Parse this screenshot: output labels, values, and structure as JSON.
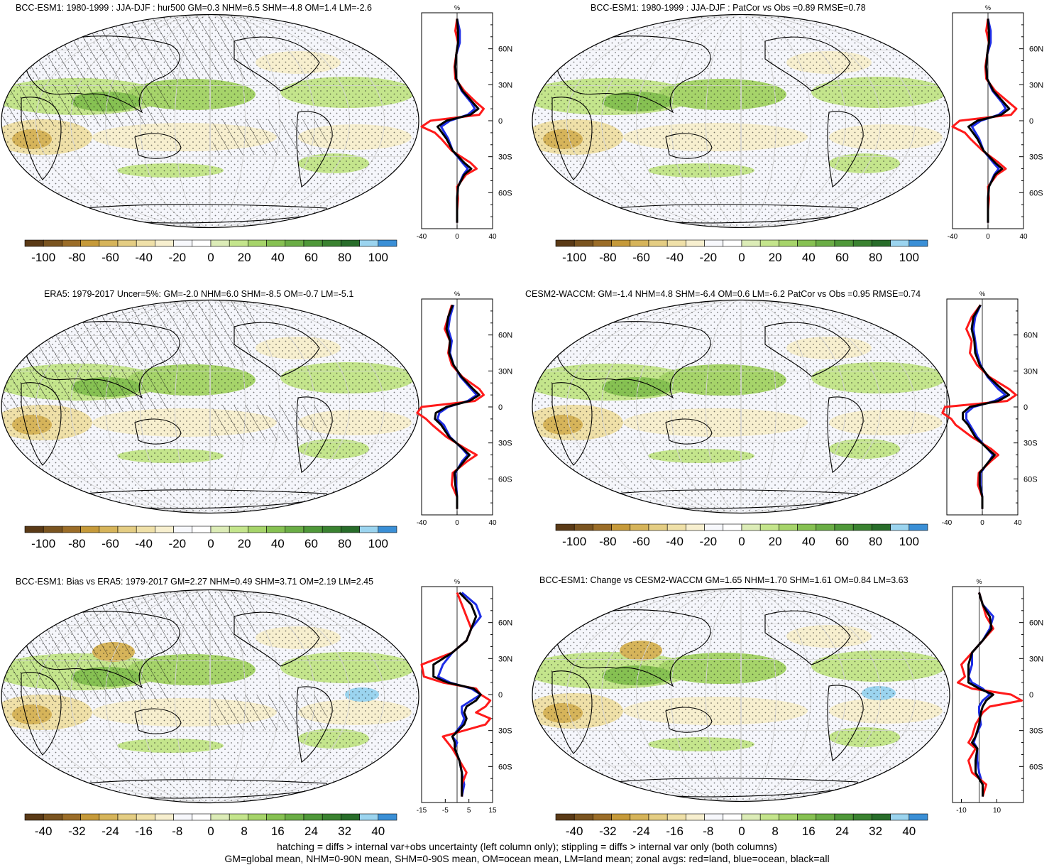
{
  "footer": {
    "line1": "hatching = diffs > internal var+obs uncertainty (left column only); stippling = diffs > internal var only (both columns)",
    "line2": "GM=global mean, NHM=0-90N mean, SHM=0-90S mean, OM=ocean mean, LM=land mean; zonal avgs: red=land, blue=ocean, black=all"
  },
  "colors": {
    "land": "#ff1a1a",
    "ocean": "#1e2ee6",
    "all": "#000000",
    "palette": [
      "#5a3a16",
      "#7a5420",
      "#9b6d28",
      "#c69a3a",
      "#d6b45a",
      "#e4cd83",
      "#efe0a8",
      "#f7efcf",
      "#f7f8fc",
      "#ffffff",
      "#dcecb7",
      "#c4e58c",
      "#a6d46a",
      "#86c152",
      "#6aad45",
      "#4f9839",
      "#3a8230",
      "#286d2a",
      "#9bd4ef",
      "#3a8fd6"
    ]
  },
  "zonal_unit": "%",
  "lat_labels": [
    "60N",
    "30N",
    "0",
    "30S",
    "60S"
  ],
  "panels": [
    {
      "id": "p1",
      "title": "BCC-ESM1: 1980-1999 : JJA-DJF : hur500 GM=0.3 NHM=6.5 SHM=-4.8 OM=1.4 LM=-2.6",
      "zonal_ticks": [
        "-40",
        "0",
        "40"
      ],
      "zonal_range": [
        -40,
        40
      ],
      "cbar_labels": [
        "-100",
        "-80",
        "-60",
        "-40",
        "-20",
        "0",
        "20",
        "40",
        "60",
        "80",
        "100"
      ],
      "hatching": true,
      "chart_data": {
        "type": "line",
        "ylabel": "%",
        "lat": [
          85,
          75,
          65,
          55,
          45,
          35,
          25,
          15,
          10,
          5,
          0,
          -5,
          -10,
          -15,
          -25,
          -35,
          -40,
          -45,
          -55,
          -65,
          -75,
          -85
        ],
        "series": [
          {
            "name": "land",
            "values": [
              0,
              -2,
              1,
              -1,
              -3,
              -2,
              8,
              22,
              30,
              25,
              -30,
              -40,
              -25,
              -18,
              -6,
              15,
              22,
              10,
              0,
              1,
              0,
              0
            ]
          },
          {
            "name": "ocean",
            "values": [
              0,
              3,
              3,
              -1,
              -2,
              -1,
              5,
              16,
              20,
              12,
              -8,
              -18,
              -14,
              -10,
              -5,
              6,
              12,
              7,
              1,
              0,
              0,
              0
            ]
          },
          {
            "name": "all",
            "values": [
              0,
              1,
              1,
              -1,
              -2,
              -1,
              6,
              18,
              24,
              15,
              -12,
              -22,
              -17,
              -12,
              -5,
              8,
              16,
              8,
              1,
              0,
              0,
              0
            ]
          }
        ]
      }
    },
    {
      "id": "p2",
      "title": "BCC-ESM1: 1980-1999 : JJA-DJF : PatCor vs Obs =0.89 RMSE=0.78",
      "zonal_ticks": [
        "-40",
        "0",
        "40"
      ],
      "zonal_range": [
        -40,
        40
      ],
      "cbar_labels": [
        "-100",
        "-80",
        "-60",
        "-40",
        "-20",
        "0",
        "20",
        "40",
        "60",
        "80",
        "100"
      ],
      "hatching": false,
      "chart_data": {
        "type": "line",
        "ylabel": "%",
        "lat": [
          85,
          75,
          65,
          55,
          45,
          35,
          25,
          15,
          10,
          5,
          0,
          -5,
          -10,
          -15,
          -25,
          -35,
          -40,
          -45,
          -55,
          -65,
          -75,
          -85
        ],
        "series": [
          {
            "name": "land",
            "values": [
              0,
              -2,
              1,
              -1,
              -3,
              -2,
              8,
              24,
              32,
              26,
              -32,
              -40,
              -26,
              -20,
              -6,
              12,
              20,
              10,
              0,
              1,
              0,
              0
            ]
          },
          {
            "name": "ocean",
            "values": [
              0,
              3,
              3,
              -1,
              -2,
              -1,
              5,
              16,
              20,
              12,
              -8,
              -18,
              -14,
              -10,
              -5,
              6,
              12,
              7,
              1,
              0,
              0,
              0
            ]
          },
          {
            "name": "all",
            "values": [
              0,
              1,
              1,
              -1,
              -2,
              -1,
              6,
              18,
              24,
              15,
              -12,
              -22,
              -17,
              -12,
              -5,
              8,
              16,
              8,
              1,
              0,
              0,
              0
            ]
          }
        ]
      }
    },
    {
      "id": "p3",
      "title": "ERA5: 1979-2017 Uncer=5%: GM=-2.0 NHM=6.0 SHM=-8.5 OM=-0.7 LM=-5.1",
      "zonal_ticks": [
        "-40",
        "0",
        "40"
      ],
      "zonal_range": [
        -40,
        40
      ],
      "cbar_labels": [
        "-100",
        "-80",
        "-60",
        "-40",
        "-20",
        "0",
        "20",
        "40",
        "60",
        "80",
        "100"
      ],
      "hatching": true,
      "chart_data": {
        "type": "line",
        "ylabel": "%",
        "lat": [
          85,
          75,
          65,
          55,
          45,
          35,
          25,
          15,
          10,
          5,
          0,
          -5,
          -10,
          -15,
          -25,
          -35,
          -40,
          -45,
          -55,
          -65,
          -75,
          -85
        ],
        "series": [
          {
            "name": "land",
            "values": [
              -6,
              -10,
              -14,
              -8,
              -10,
              -6,
              6,
              25,
              30,
              20,
              -40,
              -45,
              -35,
              -28,
              -12,
              10,
              22,
              12,
              -5,
              -6,
              0,
              0
            ]
          },
          {
            "name": "ocean",
            "values": [
              -4,
              -8,
              -10,
              -6,
              -8,
              -4,
              4,
              16,
              22,
              12,
              -10,
              -20,
              -22,
              -15,
              -8,
              6,
              12,
              6,
              -2,
              -1,
              0,
              0
            ]
          },
          {
            "name": "all",
            "values": [
              -5,
              -10,
              -12,
              -8,
              -9,
              -4,
              5,
              18,
              25,
              14,
              -12,
              -24,
              -25,
              -18,
              -9,
              7,
              14,
              8,
              -3,
              -2,
              0,
              0
            ]
          }
        ]
      }
    },
    {
      "id": "p4",
      "title": "CESM2-WACCM: GM=-1.4 NHM=4.8 SHM=-6.4 OM=0.6 LM=-6.2 PatCor vs Obs =0.95 RMSE=0.74",
      "zonal_ticks": [
        "-40",
        "0",
        "40"
      ],
      "zonal_range": [
        -40,
        40
      ],
      "cbar_labels": [
        "-100",
        "-80",
        "-60",
        "-40",
        "-20",
        "0",
        "20",
        "40",
        "60",
        "80",
        "100"
      ],
      "hatching": false,
      "chart_data": {
        "type": "line",
        "ylabel": "%",
        "lat": [
          85,
          75,
          65,
          55,
          45,
          35,
          25,
          15,
          10,
          5,
          0,
          -5,
          -10,
          -15,
          -25,
          -35,
          -40,
          -45,
          -55,
          -65,
          -75,
          -85
        ],
        "series": [
          {
            "name": "land",
            "values": [
              -2,
              -12,
              -18,
              -12,
              -14,
              -6,
              8,
              30,
              38,
              28,
              -42,
              -45,
              -35,
              -30,
              -12,
              10,
              18,
              10,
              -4,
              -5,
              0,
              0
            ]
          },
          {
            "name": "ocean",
            "values": [
              -2,
              -8,
              -10,
              -8,
              -6,
              -2,
              6,
              18,
              26,
              14,
              -10,
              -18,
              -18,
              -14,
              -6,
              6,
              12,
              8,
              -2,
              -2,
              0,
              0
            ]
          },
          {
            "name": "all",
            "values": [
              -2,
              -10,
              -12,
              -9,
              -8,
              -3,
              7,
              22,
              30,
              18,
              -14,
              -22,
              -22,
              -16,
              -8,
              6,
              14,
              8,
              -3,
              -3,
              0,
              0
            ]
          }
        ]
      }
    },
    {
      "id": "p5",
      "title": "BCC-ESM1: Bias vs ERA5: 1979-2017 GM=2.27 NHM=0.49 SHM=3.71 OM=2.19 LM=2.45",
      "zonal_ticks": [
        "-15",
        "-5",
        "5",
        "15"
      ],
      "zonal_range": [
        -15,
        15
      ],
      "cbar_labels": [
        "-40",
        "-32",
        "-24",
        "-16",
        "-8",
        "0",
        "8",
        "16",
        "24",
        "32",
        "40"
      ],
      "hatching": true,
      "chart_data": {
        "type": "line",
        "ylabel": "%",
        "lat": [
          85,
          75,
          65,
          55,
          45,
          35,
          25,
          15,
          10,
          5,
          0,
          -5,
          -10,
          -15,
          -20,
          -25,
          -35,
          -40,
          -45,
          -55,
          -65,
          -75,
          -85
        ],
        "series": [
          {
            "name": "land",
            "values": [
              0,
              2,
              4,
              6,
              4,
              -2,
              -15,
              -14,
              -6,
              8,
              10,
              14,
              12,
              8,
              14,
              12,
              -6,
              -4,
              -2,
              1,
              4,
              2,
              2
            ]
          },
          {
            "name": "ocean",
            "values": [
              2,
              8,
              10,
              6,
              4,
              -2,
              -6,
              -8,
              -3,
              6,
              10,
              6,
              2,
              2,
              3,
              2,
              -2,
              0,
              -1,
              1,
              2,
              3,
              2
            ]
          },
          {
            "name": "all",
            "values": [
              1,
              6,
              8,
              6,
              4,
              -2,
              -10,
              -10,
              -4,
              7,
              10,
              8,
              4,
              3,
              4,
              3,
              -2,
              -1,
              -1,
              1,
              2,
              2,
              2
            ]
          }
        ]
      }
    },
    {
      "id": "p6",
      "title": "BCC-ESM1: Change vs CESM2-WACCM GM=1.65 NHM=1.70 SHM=1.61 OM=0.84 LM=3.63",
      "zonal_ticks": [
        "-10",
        "10"
      ],
      "zonal_range": [
        -15,
        25
      ],
      "cbar_labels": [
        "-40",
        "-32",
        "-24",
        "-16",
        "-8",
        "0",
        "8",
        "16",
        "24",
        "32",
        "40"
      ],
      "hatching": false,
      "chart_data": {
        "type": "line",
        "ylabel": "%",
        "lat": [
          85,
          75,
          65,
          55,
          45,
          35,
          25,
          15,
          10,
          5,
          0,
          -5,
          -10,
          -15,
          -25,
          -35,
          -40,
          -45,
          -55,
          -65,
          -75,
          -85
        ],
        "series": [
          {
            "name": "land",
            "values": [
              0,
              2,
              4,
              8,
              2,
              -4,
              -10,
              -8,
              -12,
              -4,
              18,
              24,
              6,
              2,
              -2,
              -4,
              -6,
              -2,
              -6,
              -4,
              4,
              2
            ]
          },
          {
            "name": "ocean",
            "values": [
              0,
              2,
              8,
              6,
              2,
              -4,
              -4,
              -6,
              -4,
              2,
              6,
              2,
              0,
              0,
              1,
              -2,
              -3,
              -1,
              -1,
              0,
              2,
              2
            ]
          },
          {
            "name": "all",
            "values": [
              0,
              2,
              6,
              7,
              2,
              -4,
              -6,
              -6,
              -6,
              0,
              8,
              4,
              2,
              1,
              0,
              -2,
              -4,
              -1,
              -2,
              -2,
              2,
              2
            ]
          }
        ]
      }
    }
  ]
}
